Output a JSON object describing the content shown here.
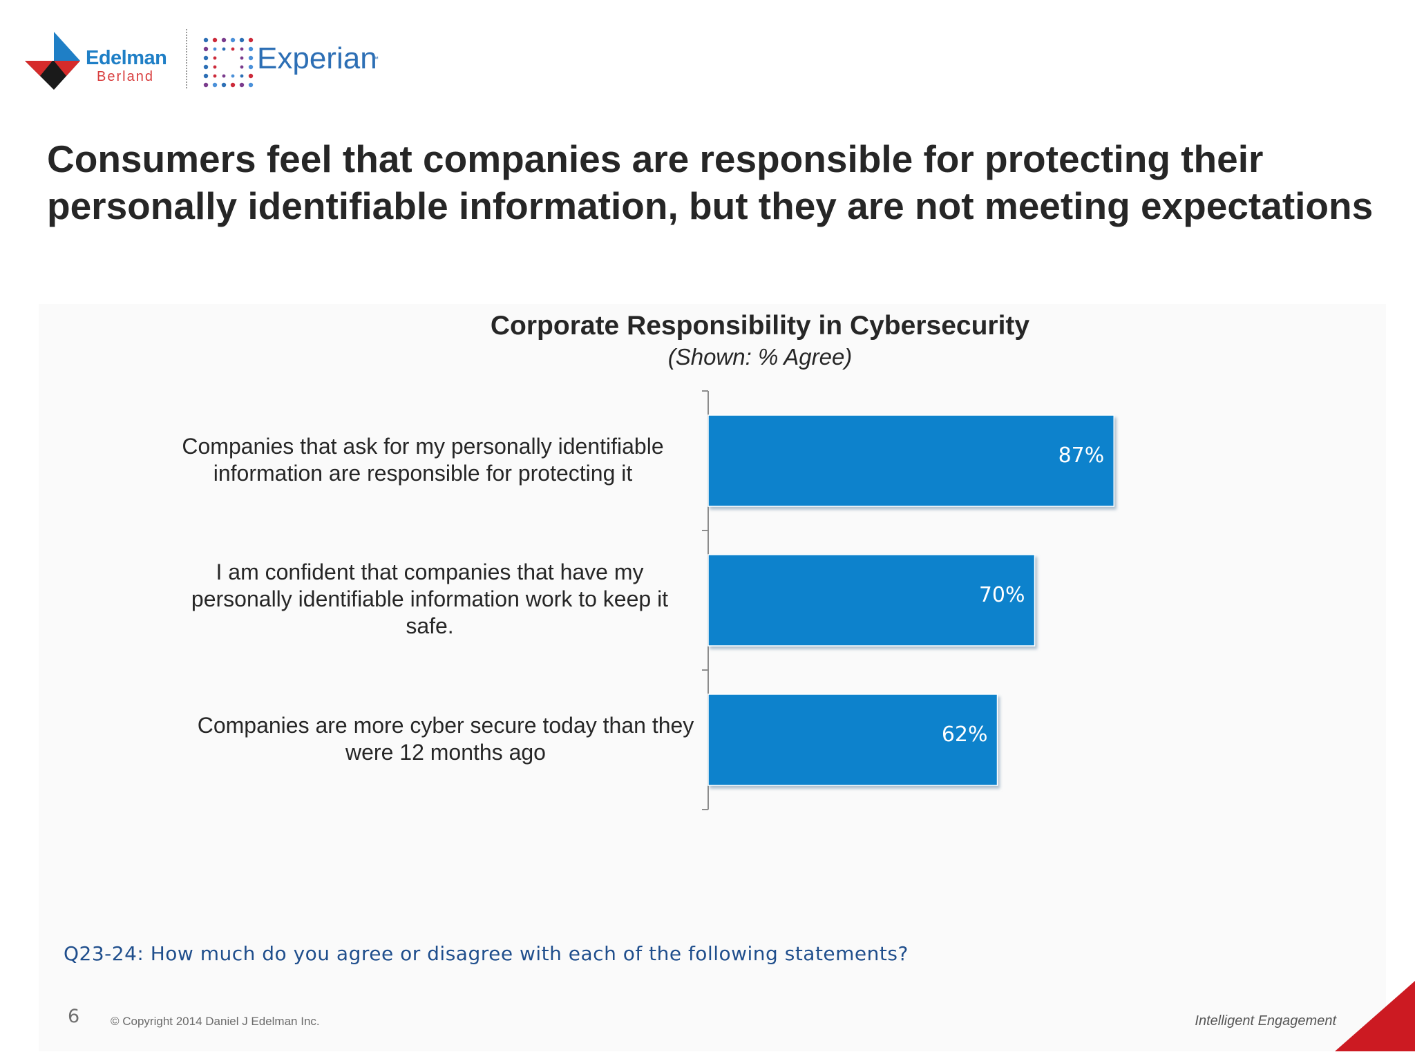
{
  "logos": {
    "edelman_line1": "Edelman",
    "edelman_line2": "Berland",
    "experian": "Experian",
    "experian_tm": "™"
  },
  "headline": "Consumers feel that companies are responsible for protecting their personally identifiable information, but they are not meeting expectations",
  "chart_data": {
    "type": "bar",
    "orientation": "horizontal",
    "title": "Corporate Responsibility in Cybersecurity",
    "subtitle": "(Shown: % Agree)",
    "categories": [
      "Companies that ask for my personally identifiable information are responsible for protecting it",
      "I am confident that companies that have my personally identifiable information work to keep it safe.",
      "Companies are more cyber secure today than they were 12 months ago"
    ],
    "values": [
      87,
      70,
      62
    ],
    "data_labels": [
      "87%",
      "70%",
      "62%"
    ],
    "xlim": [
      0,
      100
    ],
    "grid": false,
    "legend": "none",
    "bar_color": "#0a82cc"
  },
  "footer": {
    "question": "Q23-24: How much do you agree or disagree with each of the following statements?",
    "page_number": "6",
    "copyright": "© Copyright 2014 Daniel J Edelman Inc.",
    "tagline": "Intelligent Engagement"
  },
  "colors": {
    "brand_red": "#cc1a22",
    "brand_blue": "#1f7fc6",
    "question_blue": "#1f4e8c"
  }
}
